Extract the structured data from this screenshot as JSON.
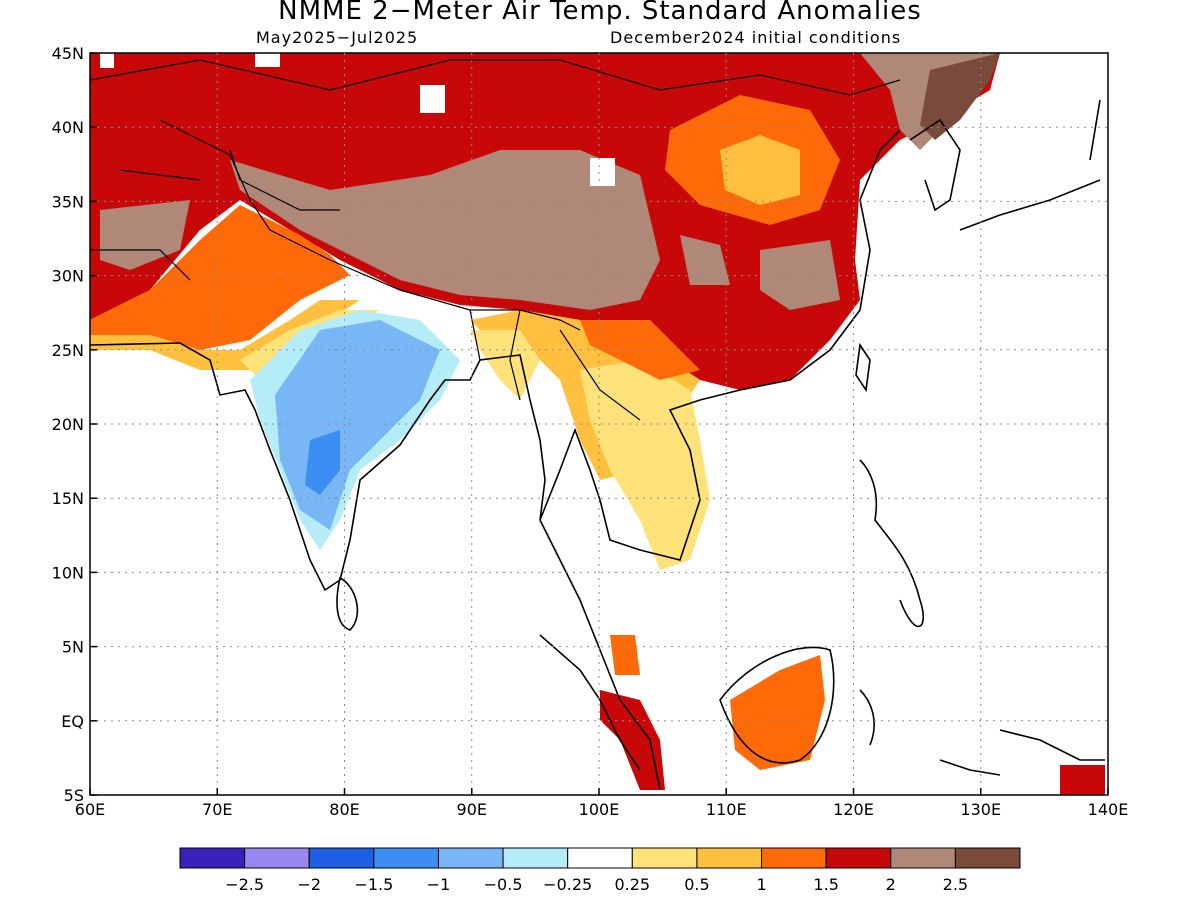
{
  "title": "NMME 2−Meter Air Temp. Standard Anomalies",
  "subtitle_left": "May2025−Jul2025",
  "subtitle_right": "December2024 initial conditions",
  "lon_labels": [
    "60E",
    "70E",
    "80E",
    "90E",
    "100E",
    "110E",
    "120E",
    "130E",
    "140E"
  ],
  "lat_labels": [
    "45N",
    "40N",
    "35N",
    "30N",
    "25N",
    "20N",
    "15N",
    "10N",
    "5N",
    "EQ",
    "5S"
  ],
  "legend": {
    "colors": [
      "#3a1fb8",
      "#9a86f0",
      "#1f5fe6",
      "#3d8ef2",
      "#78b6f6",
      "#b4ecf8",
      "#ffffff",
      "#ffe27a",
      "#ffc040",
      "#ff6a08",
      "#c80808",
      "#b08878",
      "#7a4a3a"
    ],
    "labels": [
      "−2.5",
      "−2",
      "−1.5",
      "−1",
      "−0.5",
      "−0.25",
      "0.25",
      "0.5",
      "1",
      "1.5",
      "2",
      "2.5"
    ]
  },
  "map": {
    "region": "South and East Asia, 60E–140E, 5S–45N",
    "dominant_anomaly_colors": {
      "north_china_mongolia": "#c80808",
      "tibetan_plateau": "#b08878",
      "india_interior": "#78b6f6",
      "southeast_asia": "#ffe27a",
      "borneo": "#ff6a08"
    }
  }
}
